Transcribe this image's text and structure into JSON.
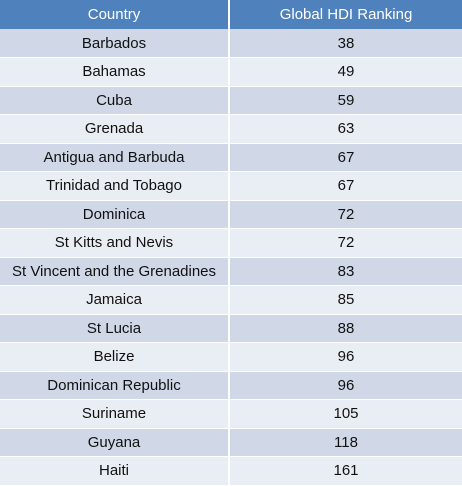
{
  "colors": {
    "header_bg": "#4f81bd",
    "header_text": "#ffffff",
    "row_odd": "#d0d8e8",
    "row_even": "#e9edf4"
  },
  "chart_data": {
    "type": "table",
    "columns": [
      "Country",
      "Global HDI Ranking"
    ],
    "rows": [
      {
        "country": "Barbados",
        "rank": "38"
      },
      {
        "country": "Bahamas",
        "rank": "49"
      },
      {
        "country": "Cuba",
        "rank": "59"
      },
      {
        "country": "Grenada",
        "rank": "63"
      },
      {
        "country": "Antigua and Barbuda",
        "rank": "67"
      },
      {
        "country": "Trinidad and Tobago",
        "rank": "67"
      },
      {
        "country": "Dominica",
        "rank": "72"
      },
      {
        "country": "St Kitts and Nevis",
        "rank": "72"
      },
      {
        "country": "St Vincent and the Grenadines",
        "rank": "83"
      },
      {
        "country": "Jamaica",
        "rank": "85"
      },
      {
        "country": "St Lucia",
        "rank": "88"
      },
      {
        "country": "Belize",
        "rank": "96"
      },
      {
        "country": "Dominican Republic",
        "rank": "96"
      },
      {
        "country": "Suriname",
        "rank": "105"
      },
      {
        "country": "Guyana",
        "rank": "118"
      },
      {
        "country": "Haiti",
        "rank": "161"
      }
    ]
  }
}
